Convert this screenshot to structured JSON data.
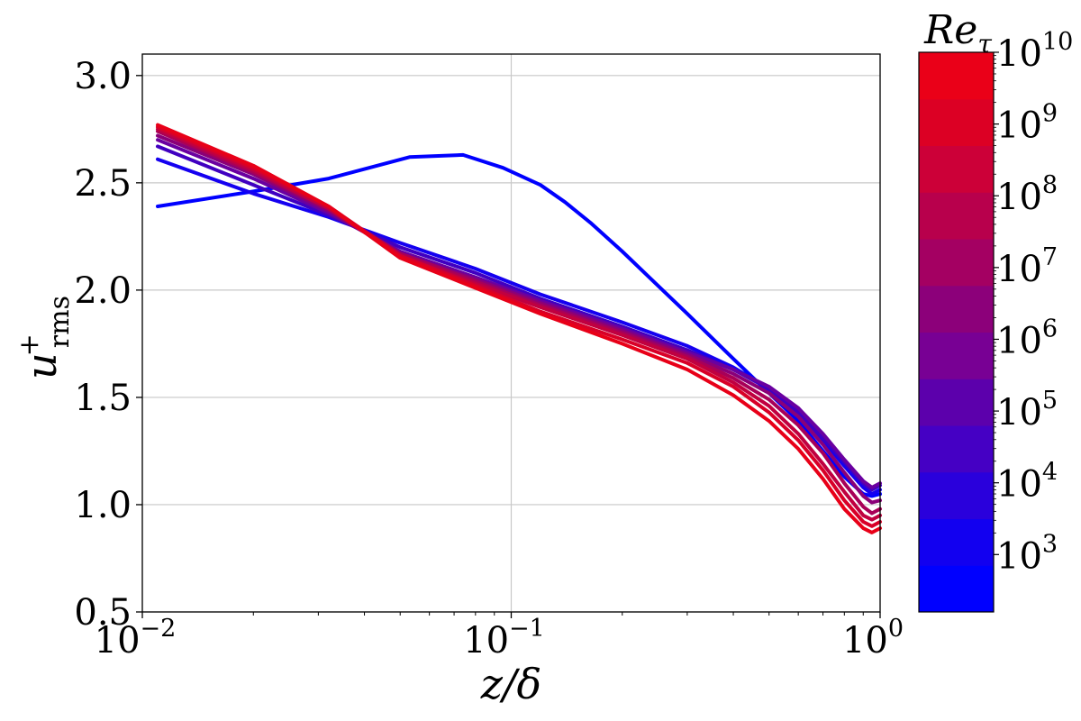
{
  "chart_data": {
    "type": "line",
    "x_scale": "log",
    "xlim": [
      0.01,
      1
    ],
    "ylim": [
      0.5,
      3.1
    ],
    "grid": true,
    "xlabel": "z/δ",
    "ylabel": {
      "base": "u",
      "sup": "+",
      "sub": "rms"
    },
    "x_ticks": [
      {
        "value": 0.01,
        "base": "10",
        "exp": "−2"
      },
      {
        "value": 0.1,
        "base": "10",
        "exp": "−1"
      },
      {
        "value": 1,
        "base": "10",
        "exp": "0"
      }
    ],
    "y_ticks": [
      {
        "value": 0.5,
        "label": "0.5"
      },
      {
        "value": 1.0,
        "label": "1.0"
      },
      {
        "value": 1.5,
        "label": "1.5"
      },
      {
        "value": 2.0,
        "label": "2.0"
      },
      {
        "value": 2.5,
        "label": "2.5"
      },
      {
        "value": 3.0,
        "label": "3.0"
      }
    ],
    "series": [
      {
        "color": "#0000ff",
        "x": [
          0.011,
          0.02,
          0.032,
          0.053,
          0.074,
          0.095,
          0.12,
          0.14,
          0.165,
          0.2,
          0.25,
          0.3,
          0.4,
          0.5,
          0.6,
          0.7,
          0.8,
          0.9,
          0.95,
          1.0
        ],
        "y": [
          2.39,
          2.46,
          2.52,
          2.62,
          2.63,
          2.57,
          2.49,
          2.41,
          2.31,
          2.18,
          2.02,
          1.89,
          1.68,
          1.52,
          1.39,
          1.25,
          1.13,
          1.05,
          1.04,
          1.05
        ]
      },
      {
        "color": "#1500f0",
        "x": [
          0.011,
          0.02,
          0.032,
          0.05,
          0.08,
          0.12,
          0.2,
          0.3,
          0.4,
          0.5,
          0.6,
          0.7,
          0.8,
          0.9,
          0.95,
          1.0
        ],
        "y": [
          2.61,
          2.45,
          2.34,
          2.22,
          2.1,
          1.98,
          1.85,
          1.74,
          1.64,
          1.54,
          1.42,
          1.3,
          1.18,
          1.08,
          1.05,
          1.07
        ]
      },
      {
        "color": "#4000c0",
        "x": [
          0.011,
          0.02,
          0.032,
          0.05,
          0.08,
          0.12,
          0.2,
          0.3,
          0.4,
          0.5,
          0.6,
          0.7,
          0.8,
          0.9,
          0.95,
          1.0
        ],
        "y": [
          2.67,
          2.49,
          2.35,
          2.2,
          2.08,
          1.96,
          1.83,
          1.72,
          1.63,
          1.54,
          1.43,
          1.31,
          1.2,
          1.1,
          1.07,
          1.09
        ]
      },
      {
        "color": "#6a00a0",
        "x": [
          0.011,
          0.02,
          0.032,
          0.05,
          0.08,
          0.12,
          0.2,
          0.3,
          0.4,
          0.5,
          0.6,
          0.7,
          0.8,
          0.9,
          0.95,
          1.0
        ],
        "y": [
          2.7,
          2.52,
          2.36,
          2.18,
          2.06,
          1.95,
          1.82,
          1.71,
          1.63,
          1.55,
          1.45,
          1.33,
          1.21,
          1.11,
          1.08,
          1.1
        ]
      },
      {
        "color": "#8a0078",
        "x": [
          0.011,
          0.02,
          0.032,
          0.05,
          0.08,
          0.12,
          0.2,
          0.3,
          0.4,
          0.5,
          0.6,
          0.7,
          0.8,
          0.9,
          0.95,
          1.0
        ],
        "y": [
          2.72,
          2.54,
          2.37,
          2.17,
          2.05,
          1.94,
          1.81,
          1.7,
          1.61,
          1.52,
          1.41,
          1.28,
          1.15,
          1.04,
          1.01,
          1.02
        ]
      },
      {
        "color": "#a80058",
        "x": [
          0.011,
          0.02,
          0.032,
          0.05,
          0.08,
          0.12,
          0.2,
          0.3,
          0.4,
          0.5,
          0.6,
          0.7,
          0.8,
          0.9,
          0.95,
          1.0
        ],
        "y": [
          2.74,
          2.55,
          2.38,
          2.17,
          2.04,
          1.93,
          1.8,
          1.69,
          1.59,
          1.49,
          1.37,
          1.24,
          1.1,
          0.99,
          0.96,
          0.98
        ]
      },
      {
        "color": "#c00040",
        "x": [
          0.011,
          0.02,
          0.032,
          0.05,
          0.08,
          0.12,
          0.2,
          0.3,
          0.4,
          0.5,
          0.6,
          0.7,
          0.8,
          0.9,
          0.95,
          1.0
        ],
        "y": [
          2.75,
          2.56,
          2.38,
          2.16,
          2.03,
          1.92,
          1.79,
          1.68,
          1.57,
          1.46,
          1.33,
          1.19,
          1.06,
          0.95,
          0.93,
          0.95
        ]
      },
      {
        "color": "#d80028",
        "x": [
          0.011,
          0.02,
          0.032,
          0.05,
          0.08,
          0.12,
          0.2,
          0.3,
          0.4,
          0.5,
          0.6,
          0.7,
          0.8,
          0.9,
          0.95,
          1.0
        ],
        "y": [
          2.76,
          2.57,
          2.39,
          2.16,
          2.02,
          1.9,
          1.77,
          1.66,
          1.55,
          1.43,
          1.3,
          1.16,
          1.02,
          0.92,
          0.9,
          0.92
        ]
      },
      {
        "color": "#e80018",
        "x": [
          0.011,
          0.02,
          0.032,
          0.05,
          0.08,
          0.12,
          0.2,
          0.3,
          0.4,
          0.5,
          0.6,
          0.7,
          0.8,
          0.9,
          0.95,
          1.0
        ],
        "y": [
          2.77,
          2.58,
          2.39,
          2.15,
          2.01,
          1.89,
          1.75,
          1.63,
          1.51,
          1.39,
          1.26,
          1.12,
          0.98,
          0.89,
          0.87,
          0.89
        ]
      }
    ],
    "colorbar": {
      "title": {
        "base": "Re",
        "sub": "τ"
      },
      "min_exp": 2.2,
      "max_exp": 10,
      "bands": [
        "#0000ff",
        "#1200f0",
        "#2a00dc",
        "#4500c4",
        "#5c00ac",
        "#780094",
        "#8c007a",
        "#a40062",
        "#b8004c",
        "#cc0038",
        "#dc0024",
        "#ea0018"
      ],
      "ticks": [
        {
          "exp": 3,
          "base": "10",
          "label": "3"
        },
        {
          "exp": 4,
          "base": "10",
          "label": "4"
        },
        {
          "exp": 5,
          "base": "10",
          "label": "5"
        },
        {
          "exp": 6,
          "base": "10",
          "label": "6"
        },
        {
          "exp": 7,
          "base": "10",
          "label": "7"
        },
        {
          "exp": 8,
          "base": "10",
          "label": "8"
        },
        {
          "exp": 9,
          "base": "10",
          "label": "9"
        },
        {
          "exp": 10,
          "base": "10",
          "label": "10"
        }
      ]
    }
  }
}
